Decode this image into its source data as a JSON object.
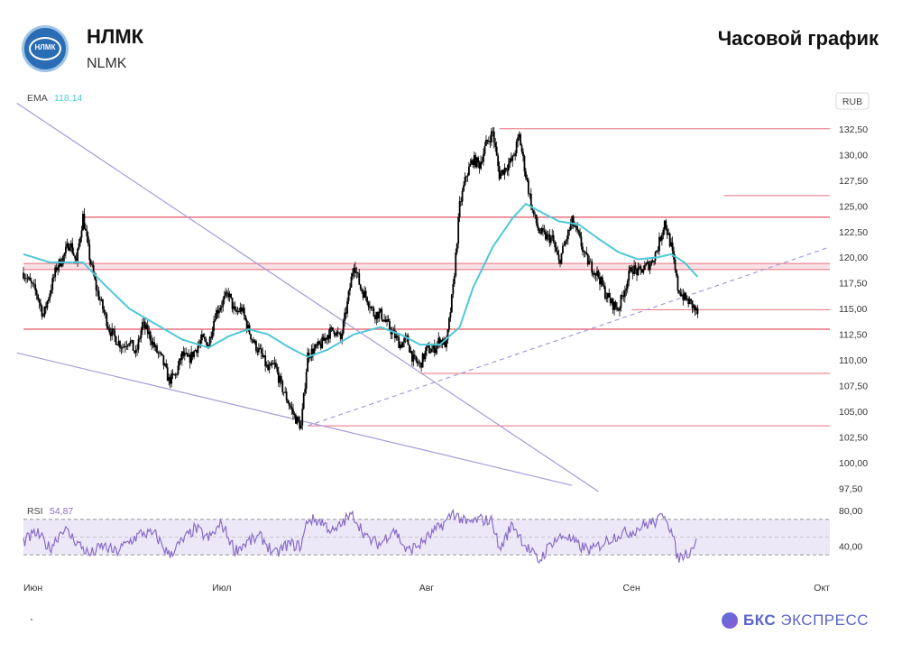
{
  "header": {
    "logo_text": "НЛМК",
    "title": "НЛМК",
    "subtitle": "NLMK",
    "timeframe": "Часовой график"
  },
  "brand": {
    "bold": "БКС",
    "rest": " ЭКСПРЕСС"
  },
  "colors": {
    "candle": "#000000",
    "ema": "#4fc8d6",
    "levels": "#e8707f",
    "band": "#f6cdd3",
    "trend": "#a89ad8",
    "rsi": "#8a6cc8",
    "rsi_fill": "#ece8f8"
  },
  "chart_data": [
    {
      "type": "candlestick",
      "currency_label": "RUB",
      "indicator": {
        "name": "EMA",
        "value": "118,14"
      },
      "ylim": [
        96.5,
        133.8
      ],
      "y_ticks": [
        "132,50",
        "130,00",
        "127,50",
        "125,00",
        "122,50",
        "120,00",
        "117,50",
        "115,00",
        "112,50",
        "110,00",
        "107,50",
        "105,00",
        "102,50",
        "100,00",
        "97,50"
      ],
      "y_tick_values": [
        132.5,
        130,
        127.5,
        125,
        122.5,
        120,
        117.5,
        115,
        112.5,
        110,
        107.5,
        105,
        102.5,
        100,
        97.5
      ],
      "x_ticks": [
        "Июн",
        "Июл",
        "Авг",
        "Сен",
        "Окт"
      ],
      "x_tick_days": [
        0,
        30,
        61,
        92,
        122
      ],
      "x_range_days": [
        0,
        122
      ],
      "price_anchors": [
        [
          0,
          118.5
        ],
        [
          2,
          116.5
        ],
        [
          3,
          114.3
        ],
        [
          5,
          119
        ],
        [
          6,
          120
        ],
        [
          7,
          121.5
        ],
        [
          8,
          119.5
        ],
        [
          9,
          124
        ],
        [
          10,
          120
        ],
        [
          11,
          117
        ],
        [
          12,
          115
        ],
        [
          13,
          113
        ],
        [
          14,
          112
        ],
        [
          15,
          111.3
        ],
        [
          16,
          112
        ],
        [
          17,
          110.5
        ],
        [
          18,
          113.5
        ],
        [
          19,
          112.5
        ],
        [
          20,
          111
        ],
        [
          21,
          110
        ],
        [
          22,
          108
        ],
        [
          23,
          108.5
        ],
        [
          24,
          110.5
        ],
        [
          25,
          110
        ],
        [
          26,
          111
        ],
        [
          27,
          112
        ],
        [
          28,
          111.5
        ],
        [
          29,
          114.5
        ],
        [
          30,
          115.5
        ],
        [
          31,
          116.5
        ],
        [
          32,
          114.5
        ],
        [
          33,
          115
        ],
        [
          34,
          113
        ],
        [
          35,
          111.5
        ],
        [
          36,
          110.5
        ],
        [
          37,
          109
        ],
        [
          38,
          109.5
        ],
        [
          39,
          107.5
        ],
        [
          40,
          106
        ],
        [
          41,
          104.5
        ],
        [
          42,
          103.5
        ],
        [
          43,
          110.5
        ],
        [
          44,
          111
        ],
        [
          45,
          111.5
        ],
        [
          46,
          112.5
        ],
        [
          47,
          113
        ],
        [
          48,
          112
        ],
        [
          49,
          115.5
        ],
        [
          50,
          119.5
        ],
        [
          51,
          117
        ],
        [
          52,
          116
        ],
        [
          53,
          114.5
        ],
        [
          54,
          114.5
        ],
        [
          55,
          113.5
        ],
        [
          56,
          112.5
        ],
        [
          57,
          111.5
        ],
        [
          58,
          112
        ],
        [
          59,
          110
        ],
        [
          60,
          109.5
        ],
        [
          61,
          111
        ],
        [
          62,
          111
        ],
        [
          63,
          112
        ],
        [
          64,
          111.5
        ],
        [
          65,
          117
        ],
        [
          66,
          125
        ],
        [
          67,
          128
        ],
        [
          68,
          129.5
        ],
        [
          69,
          129
        ],
        [
          70,
          131
        ],
        [
          71,
          132.2
        ],
        [
          72,
          128
        ],
        [
          73,
          128.8
        ],
        [
          74,
          129.5
        ],
        [
          75,
          131.8
        ],
        [
          76,
          128
        ],
        [
          77,
          124.5
        ],
        [
          78,
          122.5
        ],
        [
          79,
          122
        ],
        [
          80,
          121.8
        ],
        [
          81,
          119.5
        ],
        [
          82,
          121.5
        ],
        [
          83,
          123.5
        ],
        [
          84,
          122
        ],
        [
          85,
          120
        ],
        [
          86,
          119
        ],
        [
          87,
          118.2
        ],
        [
          88,
          116.5
        ],
        [
          89,
          115.5
        ],
        [
          90,
          115
        ],
        [
          91,
          117
        ],
        [
          92,
          119
        ],
        [
          93,
          118.5
        ],
        [
          94,
          119
        ],
        [
          95,
          119.5
        ],
        [
          96,
          121
        ],
        [
          97,
          123.5
        ],
        [
          98,
          121
        ],
        [
          99,
          117
        ],
        [
          100,
          116
        ],
        [
          101,
          115.5
        ],
        [
          102,
          114.5
        ]
      ],
      "ema_anchors": [
        [
          0,
          120.3
        ],
        [
          4,
          119.5
        ],
        [
          9,
          119.5
        ],
        [
          12,
          117.5
        ],
        [
          16,
          115
        ],
        [
          20,
          113.5
        ],
        [
          24,
          112
        ],
        [
          28,
          111.2
        ],
        [
          31,
          112.3
        ],
        [
          34,
          113
        ],
        [
          37,
          112.5
        ],
        [
          40,
          111.3
        ],
        [
          43,
          110.3
        ],
        [
          46,
          111
        ],
        [
          50,
          112.5
        ],
        [
          54,
          113.2
        ],
        [
          57,
          112.5
        ],
        [
          60,
          111.5
        ],
        [
          63,
          111.5
        ],
        [
          66,
          113.2
        ],
        [
          68,
          117
        ],
        [
          71,
          121
        ],
        [
          74,
          123.8
        ],
        [
          76,
          125.2
        ],
        [
          78,
          124.5
        ],
        [
          81,
          123.5
        ],
        [
          84,
          123.2
        ],
        [
          87,
          121.8
        ],
        [
          90,
          120.5
        ],
        [
          93,
          119.8
        ],
        [
          96,
          120
        ],
        [
          98,
          120.3
        ],
        [
          100,
          119.5
        ],
        [
          102,
          118.1
        ]
      ],
      "levels": [
        132.5,
        123.9,
        114.9,
        113.0,
        108.7,
        103.6
      ],
      "level_short": 126.0,
      "band": [
        118.8,
        119.4
      ],
      "trendlines": [
        {
          "name": "upper",
          "from": [
            -1,
            135
          ],
          "to": [
            87,
            97.2
          ]
        },
        {
          "name": "lower",
          "from": [
            -1,
            110.7
          ],
          "to": [
            83,
            97.8
          ]
        },
        {
          "name": "support",
          "from": [
            43,
            103.6
          ],
          "to": [
            122,
            121
          ]
        }
      ]
    },
    {
      "type": "line",
      "indicator": {
        "name": "RSI",
        "value": "54,87"
      },
      "ylim": [
        17,
        83
      ],
      "y_ticks": [
        "80,00",
        "40,00"
      ],
      "y_tick_values": [
        80,
        40
      ],
      "band": [
        30,
        70
      ],
      "mid": 50,
      "rsi_anchors": [
        [
          0,
          45
        ],
        [
          2,
          55
        ],
        [
          4,
          37
        ],
        [
          6,
          60
        ],
        [
          8,
          45
        ],
        [
          10,
          30
        ],
        [
          12,
          40
        ],
        [
          14,
          33
        ],
        [
          16,
          45
        ],
        [
          18,
          55
        ],
        [
          20,
          52
        ],
        [
          22,
          30
        ],
        [
          24,
          45
        ],
        [
          26,
          60
        ],
        [
          28,
          48
        ],
        [
          30,
          65
        ],
        [
          32,
          35
        ],
        [
          34,
          45
        ],
        [
          36,
          50
        ],
        [
          38,
          30
        ],
        [
          40,
          42
        ],
        [
          42,
          40
        ],
        [
          43,
          70
        ],
        [
          45,
          68
        ],
        [
          47,
          55
        ],
        [
          49,
          72
        ],
        [
          50,
          74
        ],
        [
          52,
          48
        ],
        [
          54,
          42
        ],
        [
          56,
          60
        ],
        [
          58,
          34
        ],
        [
          60,
          42
        ],
        [
          62,
          55
        ],
        [
          64,
          68
        ],
        [
          65,
          78
        ],
        [
          67,
          65
        ],
        [
          69,
          70
        ],
        [
          71,
          68
        ],
        [
          72,
          35
        ],
        [
          74,
          65
        ],
        [
          76,
          40
        ],
        [
          78,
          23
        ],
        [
          80,
          45
        ],
        [
          82,
          52
        ],
        [
          84,
          40
        ],
        [
          86,
          35
        ],
        [
          88,
          45
        ],
        [
          90,
          53
        ],
        [
          92,
          56
        ],
        [
          94,
          64
        ],
        [
          96,
          68
        ],
        [
          97,
          78
        ],
        [
          98,
          57
        ],
        [
          99,
          26
        ],
        [
          101,
          35
        ],
        [
          102,
          54
        ]
      ]
    }
  ]
}
